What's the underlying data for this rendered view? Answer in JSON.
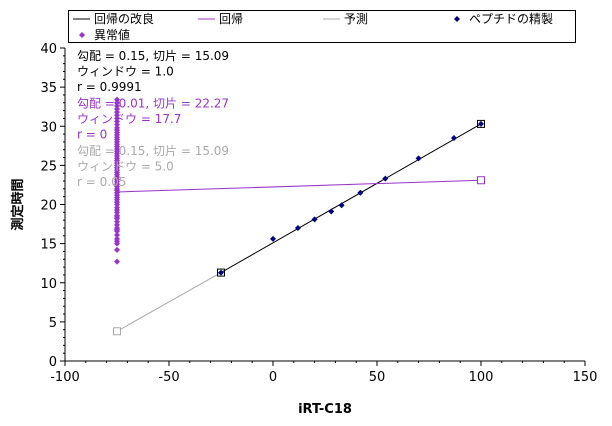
{
  "chart_data": {
    "type": "scatter",
    "xlabel": "iRT-C18",
    "ylabel": "測定時間",
    "xlim": [
      -100,
      150
    ],
    "ylim": [
      0,
      40
    ],
    "x_ticks": [
      -100,
      -50,
      0,
      50,
      100,
      150
    ],
    "y_ticks": [
      0,
      5,
      10,
      15,
      20,
      25,
      30,
      35,
      40
    ],
    "legend": {
      "placement": "top",
      "items": [
        {
          "key": "improved",
          "label": "回帰の改良",
          "color": "#000000",
          "marker": "line"
        },
        {
          "key": "regression",
          "label": "回帰",
          "color": "#9933cc",
          "marker": "line"
        },
        {
          "key": "predicted",
          "label": "予測",
          "color": "#aaaaaa",
          "marker": "line"
        },
        {
          "key": "peptides",
          "label": "ペプチドの精製",
          "color": "#000080",
          "marker": "diamond"
        },
        {
          "key": "outliers",
          "label": "異常値",
          "color": "#9933cc",
          "marker": "diamond"
        }
      ]
    },
    "annotations": [
      {
        "color": "#000000",
        "lines": [
          "勾配 = 0.15, 切片 = 15.09",
          "ウィンドウ = 1.0",
          "r = 0.9991"
        ]
      },
      {
        "color": "#9933cc",
        "lines": [
          "勾配 = 0.01, 切片 = 22.27",
          "ウィンドウ = 17.7",
          "r = 0"
        ]
      },
      {
        "color": "#aaaaaa",
        "lines": [
          "勾配 = 0.15, 切片 = 15.09",
          "ウィンドウ = 5.0",
          "r = 0.05"
        ]
      }
    ],
    "series": [
      {
        "name": "回帰の改良",
        "kind": "line",
        "color": "#000000",
        "x": [
          -25,
          100
        ],
        "y": [
          11.3,
          30.3
        ]
      },
      {
        "name": "回帰",
        "kind": "line",
        "color": "#9933cc",
        "x": [
          -75,
          100
        ],
        "y": [
          21.6,
          23.1
        ],
        "endpoint_markers": [
          {
            "x": 100,
            "y": 23.1
          }
        ]
      },
      {
        "name": "予測",
        "kind": "line",
        "color": "#aaaaaa",
        "x": [
          -75,
          -25
        ],
        "y": [
          3.8,
          11.3
        ],
        "endpoint_markers": [
          {
            "x": -75,
            "y": 3.8
          }
        ]
      },
      {
        "name": "ペプチドの精製",
        "kind": "scatter",
        "color": "#000080",
        "x": [
          -25,
          0,
          12,
          20,
          28,
          33,
          42,
          54,
          70,
          87,
          100
        ],
        "y": [
          11.3,
          15.6,
          17.0,
          18.1,
          19.1,
          19.9,
          21.5,
          23.3,
          25.9,
          28.5,
          30.3
        ],
        "boxed": [
          {
            "x": -25,
            "y": 11.3
          },
          {
            "x": 100,
            "y": 30.3
          }
        ]
      },
      {
        "name": "異常値",
        "kind": "scatter",
        "color": "#9933cc",
        "x": [
          -75,
          -75,
          -75,
          -75,
          -75,
          -75,
          -75,
          -75,
          -75,
          -75,
          -75,
          -75,
          -75,
          -75,
          -75,
          -75,
          -75,
          -75,
          -75,
          -75,
          -75,
          -75,
          -75,
          -75,
          -75,
          -75,
          -75,
          -75,
          -75,
          -75,
          -75,
          -75,
          -75,
          -75,
          -75,
          -75,
          -75,
          -75,
          -75,
          -75,
          -75,
          -75,
          -75,
          -75,
          -75,
          -75,
          -75,
          -75,
          -75,
          -75,
          -75,
          -75,
          -75,
          -75,
          -75,
          -75,
          -75,
          -75,
          -75,
          -75
        ],
        "y": [
          12.7,
          14.2,
          15.0,
          15.6,
          16.1,
          16.6,
          17.0,
          17.4,
          17.8,
          18.2,
          18.6,
          19.0,
          19.3,
          19.6,
          20.0,
          20.3,
          20.6,
          20.9,
          21.2,
          21.5,
          21.8,
          22.0,
          22.3,
          22.6,
          22.9,
          23.2,
          23.5,
          23.8,
          24.1,
          24.4,
          24.7,
          25.0,
          25.3,
          25.6,
          25.9,
          26.2,
          26.5,
          26.8,
          27.1,
          27.4,
          27.7,
          28.0,
          28.3,
          28.6,
          28.9,
          29.2,
          29.5,
          29.8,
          30.2,
          30.6,
          31.0,
          31.4,
          31.8,
          32.2,
          32.6,
          33.0,
          33.4,
          15.3,
          16.8,
          18.4
        ]
      }
    ]
  }
}
